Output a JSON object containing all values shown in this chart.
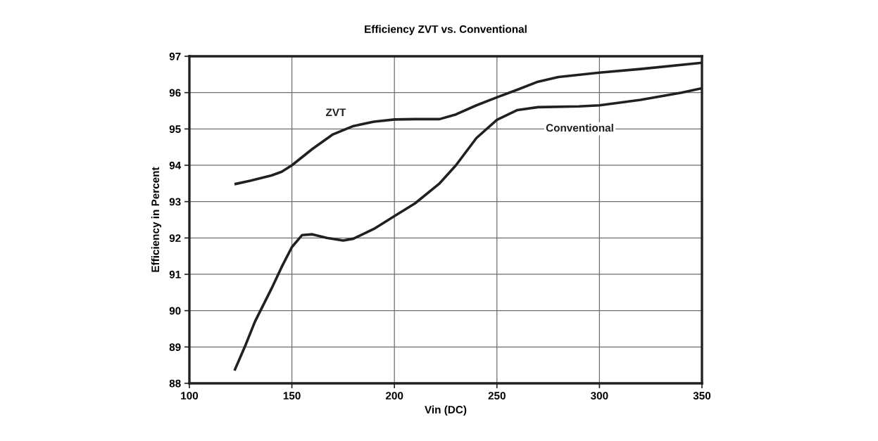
{
  "chart_data": {
    "type": "line",
    "title": "Efficiency ZVT vs. Conventional",
    "xlabel": "Vin (DC)",
    "ylabel": "Efficiency in Percent",
    "xlim": [
      100,
      350
    ],
    "xticks": [
      100,
      150,
      200,
      250,
      300,
      350
    ],
    "ylim": [
      88,
      97
    ],
    "yticks": [
      88,
      89,
      90,
      91,
      92,
      93,
      94,
      95,
      96,
      97
    ],
    "grid": true,
    "legend": false,
    "marker": "none",
    "line_style": "solid",
    "series": [
      {
        "name": "ZVT",
        "color": "#231f20",
        "x": [
          122,
          130,
          140,
          145,
          150,
          160,
          170,
          180,
          190,
          200,
          210,
          222,
          230,
          240,
          250,
          260,
          270,
          280,
          300,
          320,
          350
        ],
        "values": [
          93.48,
          93.58,
          93.72,
          93.82,
          94.0,
          94.45,
          94.85,
          95.08,
          95.2,
          95.26,
          95.27,
          95.27,
          95.4,
          95.65,
          95.87,
          96.08,
          96.3,
          96.43,
          96.55,
          96.65,
          96.82
        ]
      },
      {
        "name": "Conventional",
        "color": "#231f20",
        "x": [
          122,
          127,
          132,
          140,
          145,
          150,
          155,
          160,
          167,
          175,
          180,
          190,
          200,
          210,
          222,
          230,
          240,
          250,
          260,
          270,
          290,
          300,
          320,
          340,
          350
        ],
        "values": [
          88.35,
          89.0,
          89.7,
          90.6,
          91.2,
          91.75,
          92.08,
          92.1,
          92.0,
          91.93,
          91.98,
          92.25,
          92.6,
          92.95,
          93.5,
          94.0,
          94.75,
          95.25,
          95.52,
          95.6,
          95.62,
          95.65,
          95.8,
          96.0,
          96.12
        ]
      }
    ]
  }
}
